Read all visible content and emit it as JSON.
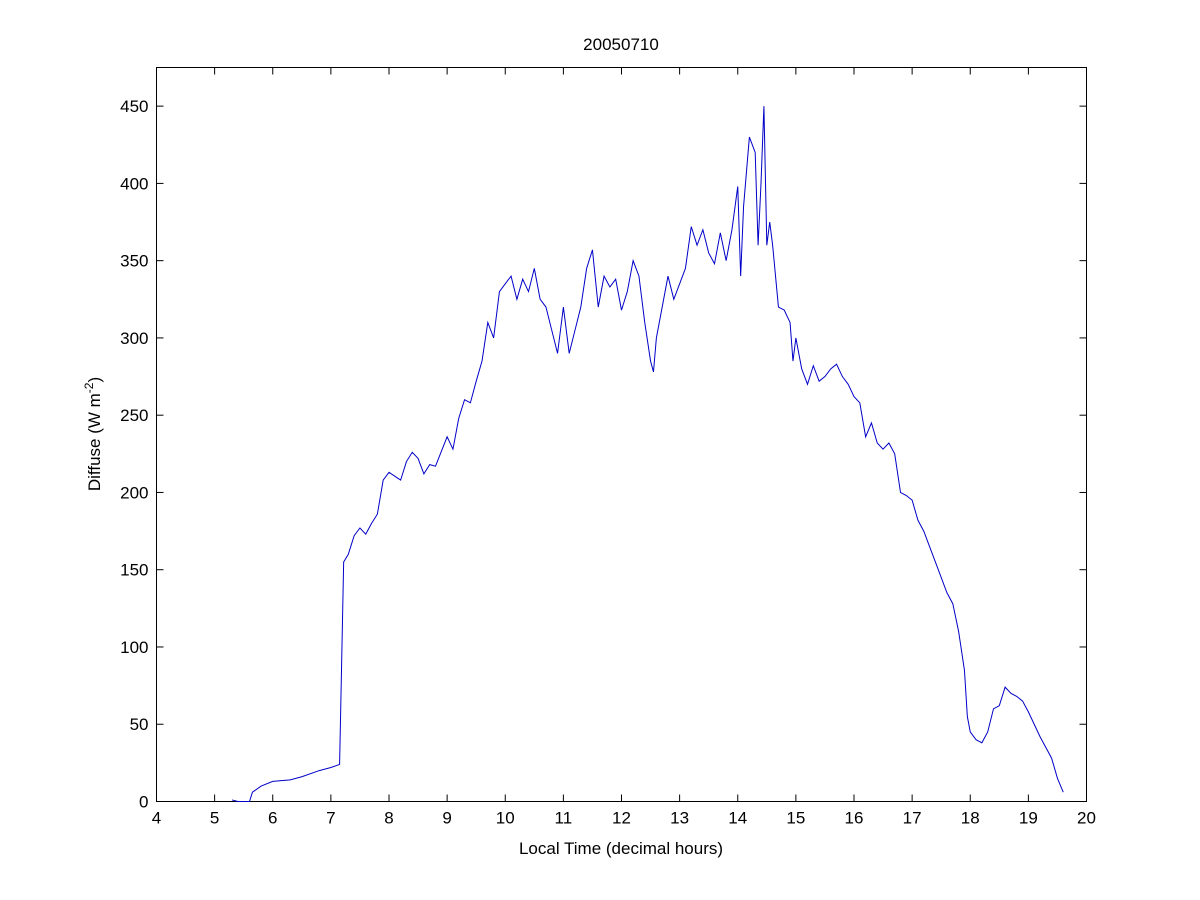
{
  "chart_data": {
    "type": "line",
    "title": "20050710",
    "x_label": "Local Time (decimal hours)",
    "y_label": [
      "Diffuse (W m",
      "-2",
      ")"
    ],
    "xlim": [
      4,
      20
    ],
    "xticks": [
      4,
      5,
      6,
      7,
      8,
      9,
      10,
      11,
      12,
      13,
      14,
      15,
      16,
      17,
      18,
      19,
      20
    ],
    "ylim": [
      0,
      475
    ],
    "yticks": [
      0,
      50,
      100,
      150,
      200,
      250,
      300,
      350,
      400,
      450
    ],
    "grid": false,
    "x": [
      5.3,
      5.4,
      5.6,
      5.65,
      5.8,
      6.0,
      6.3,
      6.5,
      6.8,
      7.0,
      7.15,
      7.18,
      7.22,
      7.3,
      7.4,
      7.5,
      7.6,
      7.7,
      7.8,
      7.9,
      8.0,
      8.2,
      8.3,
      8.4,
      8.5,
      8.6,
      8.7,
      8.8,
      9.0,
      9.1,
      9.2,
      9.3,
      9.4,
      9.5,
      9.6,
      9.7,
      9.8,
      9.9,
      10.0,
      10.1,
      10.2,
      10.3,
      10.4,
      10.5,
      10.6,
      10.7,
      10.8,
      10.9,
      11.0,
      11.1,
      11.2,
      11.3,
      11.4,
      11.5,
      11.6,
      11.7,
      11.8,
      11.9,
      12.0,
      12.1,
      12.2,
      12.3,
      12.4,
      12.5,
      12.55,
      12.6,
      12.7,
      12.8,
      12.9,
      13.0,
      13.1,
      13.2,
      13.3,
      13.4,
      13.5,
      13.6,
      13.7,
      13.8,
      13.9,
      14.0,
      14.05,
      14.1,
      14.2,
      14.3,
      14.35,
      14.4,
      14.45,
      14.5,
      14.55,
      14.6,
      14.7,
      14.8,
      14.9,
      14.95,
      15.0,
      15.1,
      15.2,
      15.3,
      15.4,
      15.5,
      15.6,
      15.7,
      15.8,
      15.9,
      16.0,
      16.1,
      16.2,
      16.3,
      16.4,
      16.5,
      16.6,
      16.7,
      16.8,
      16.9,
      17.0,
      17.1,
      17.2,
      17.3,
      17.4,
      17.5,
      17.6,
      17.7,
      17.8,
      17.9,
      17.95,
      18.0,
      18.1,
      18.2,
      18.3,
      18.4,
      18.5,
      18.6,
      18.7,
      18.8,
      18.9,
      19.0,
      19.1,
      19.2,
      19.3,
      19.4,
      19.5,
      19.6
    ],
    "series": [
      {
        "color": "#0000c8",
        "values": [
          1,
          0,
          0,
          6,
          10,
          13,
          14,
          16,
          20,
          22,
          24,
          80,
          155,
          160,
          172,
          177,
          173,
          180,
          186,
          208,
          213,
          208,
          220,
          226,
          222,
          212,
          218,
          217,
          236,
          228,
          248,
          260,
          258,
          272,
          285,
          310,
          300,
          330,
          335,
          340,
          325,
          338,
          330,
          345,
          325,
          320,
          305,
          290,
          320,
          290,
          305,
          320,
          345,
          357,
          320,
          340,
          333,
          338,
          318,
          330,
          350,
          340,
          310,
          285,
          278,
          300,
          320,
          340,
          325,
          335,
          345,
          372,
          360,
          370,
          355,
          348,
          368,
          350,
          370,
          398,
          340,
          385,
          430,
          420,
          360,
          400,
          450,
          360,
          375,
          360,
          320,
          318,
          310,
          285,
          300,
          280,
          270,
          282,
          272,
          275,
          280,
          283,
          275,
          270,
          262,
          258,
          236,
          245,
          232,
          228,
          232,
          225,
          200,
          198,
          195,
          182,
          175,
          165,
          155,
          145,
          135,
          128,
          110,
          85,
          55,
          45,
          40,
          38,
          45,
          60,
          62,
          74,
          70,
          68,
          65,
          58,
          50,
          42,
          35,
          28,
          15,
          6
        ]
      }
    ]
  }
}
